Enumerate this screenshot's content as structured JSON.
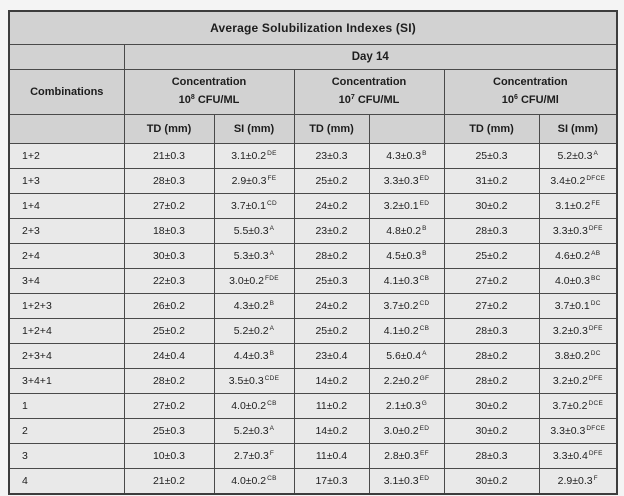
{
  "table": {
    "title": "Average Solubilization Indexes (SI)",
    "day_label": "Day 14",
    "combinations_header": "Combinations",
    "groups": [
      {
        "heading": "Concentration",
        "base": "10",
        "exp": "8",
        "unit": " CFU/ML",
        "sub": [
          "TD (mm)",
          "SI (mm)"
        ]
      },
      {
        "heading": "Concentration",
        "base": "10",
        "exp": "7",
        "unit": " CFU/ML",
        "sub": [
          "TD (mm)",
          ""
        ]
      },
      {
        "heading": "Concentration",
        "base": "10",
        "exp": "6",
        "unit": " CFU/Ml",
        "sub": [
          "TD (mm)",
          "SI (mm)"
        ]
      }
    ],
    "rows": [
      {
        "combination": "1+2",
        "groups": [
          {
            "td": "21±0.3",
            "si": "3.1±0.2",
            "sup": "DE"
          },
          {
            "td": "23±0.3",
            "si": "4.3±0.3",
            "sup": "B"
          },
          {
            "td": "25±0.3",
            "si": "5.2±0.3",
            "sup": "A"
          }
        ]
      },
      {
        "combination": "1+3",
        "groups": [
          {
            "td": "28±0.3",
            "si": "2.9±0.3",
            "sup": "FE"
          },
          {
            "td": "25±0.2",
            "si": "3.3±0.3",
            "sup": "ED"
          },
          {
            "td": "31±0.2",
            "si": "3.4±0.2",
            "sup": "DFCE"
          }
        ]
      },
      {
        "combination": "1+4",
        "groups": [
          {
            "td": "27±0.2",
            "si": "3.7±0.1",
            "sup": "CD"
          },
          {
            "td": "24±0.2",
            "si": "3.2±0.1",
            "sup": "ED"
          },
          {
            "td": "30±0.2",
            "si": "3.1±0.2",
            "sup": "FE"
          }
        ]
      },
      {
        "combination": "2+3",
        "groups": [
          {
            "td": "18±0.3",
            "si": "5.5±0.3",
            "sup": "A"
          },
          {
            "td": "23±0.2",
            "si": "4.8±0.2",
            "sup": "B"
          },
          {
            "td": "28±0.3",
            "si": "3.3±0.3",
            "sup": "DFE"
          }
        ]
      },
      {
        "combination": "2+4",
        "groups": [
          {
            "td": "30±0.3",
            "si": "5.3±0.3",
            "sup": "A"
          },
          {
            "td": "28±0.2",
            "si": "4.5±0.3",
            "sup": "B"
          },
          {
            "td": "25±0.2",
            "si": "4.6±0.2",
            "sup": "AB"
          }
        ]
      },
      {
        "combination": "3+4",
        "groups": [
          {
            "td": "22±0.3",
            "si": "3.0±0.2",
            "sup": "FDE"
          },
          {
            "td": "25±0.3",
            "si": "4.1±0.3",
            "sup": "CB"
          },
          {
            "td": "27±0.2",
            "si": "4.0±0.3",
            "sup": "BC"
          }
        ]
      },
      {
        "combination": "1+2+3",
        "groups": [
          {
            "td": "26±0.2",
            "si": "4.3±0.2",
            "sup": "B"
          },
          {
            "td": "24±0.2",
            "si": "3.7±0.2",
            "sup": "CD"
          },
          {
            "td": "27±0.2",
            "si": "3.7±0.1",
            "sup": "DC"
          }
        ]
      },
      {
        "combination": "1+2+4",
        "groups": [
          {
            "td": "25±0.2",
            "si": "5.2±0.2",
            "sup": "A"
          },
          {
            "td": "25±0.2",
            "si": "4.1±0.2",
            "sup": "CB"
          },
          {
            "td": "28±0.3",
            "si": "3.2±0.3",
            "sup": "DFE"
          }
        ]
      },
      {
        "combination": "2+3+4",
        "groups": [
          {
            "td": "24±0.4",
            "si": "4.4±0.3",
            "sup": "B"
          },
          {
            "td": "23±0.4",
            "si": "5.6±0.4",
            "sup": "A"
          },
          {
            "td": "28±0.2",
            "si": "3.8±0.2",
            "sup": "DC"
          }
        ]
      },
      {
        "combination": "3+4+1",
        "groups": [
          {
            "td": "28±0.2",
            "si": "3.5±0.3",
            "sup": "CDE"
          },
          {
            "td": "14±0.2",
            "si": "2.2±0.2",
            "sup": "GF"
          },
          {
            "td": "28±0.2",
            "si": "3.2±0.2",
            "sup": "DFE"
          }
        ]
      },
      {
        "combination": "1",
        "groups": [
          {
            "td": "27±0.2",
            "si": "4.0±0.2",
            "sup": "CB"
          },
          {
            "td": "11±0.2",
            "si": "2.1±0.3",
            "sup": "G"
          },
          {
            "td": "30±0.2",
            "si": "3.7±0.2",
            "sup": "DCE"
          }
        ]
      },
      {
        "combination": "2",
        "groups": [
          {
            "td": "25±0.3",
            "si": "5.2±0.3",
            "sup": "A"
          },
          {
            "td": "14±0.2",
            "si": "3.0±0.2",
            "sup": "ED"
          },
          {
            "td": "30±0.2",
            "si": "3.3±0.3",
            "sup": "DFCE"
          }
        ]
      },
      {
        "combination": "3",
        "groups": [
          {
            "td": "10±0.3",
            "si": "2.7±0.3",
            "sup": "F"
          },
          {
            "td": "11±0.4",
            "si": "2.8±0.3",
            "sup": "EF"
          },
          {
            "td": "28±0.3",
            "si": "3.3±0.4",
            "sup": "DFE"
          }
        ]
      },
      {
        "combination": "4",
        "groups": [
          {
            "td": "21±0.2",
            "si": "4.0±0.2",
            "sup": "CB"
          },
          {
            "td": "17±0.3",
            "si": "3.1±0.3",
            "sup": "ED"
          },
          {
            "td": "30±0.2",
            "si": "2.9±0.3",
            "sup": "F"
          }
        ]
      }
    ]
  }
}
